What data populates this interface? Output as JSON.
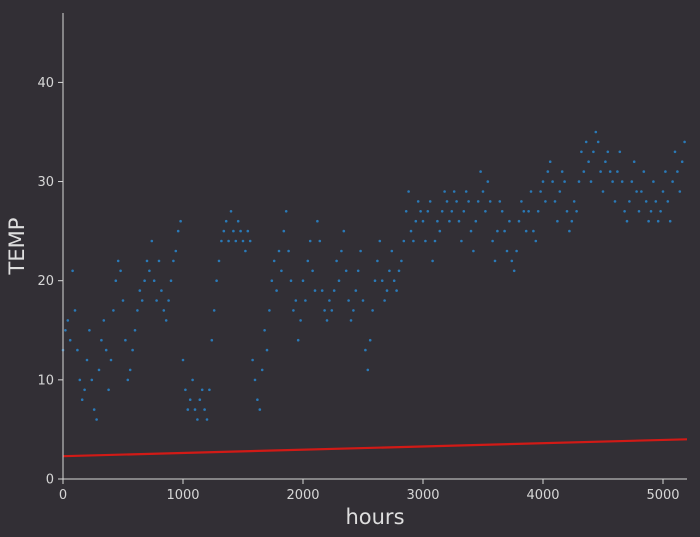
{
  "chart_data": {
    "type": "scatter",
    "xlabel": "hours",
    "ylabel": "TEMP",
    "xlim": [
      0,
      5200
    ],
    "ylim": [
      0,
      47
    ],
    "xticks": [
      "0",
      "1000",
      "2000",
      "3000",
      "4000",
      "5000"
    ],
    "yticks": [
      "0",
      "10",
      "20",
      "30",
      "40"
    ],
    "grid": false,
    "series": [
      {
        "kind": "scatter",
        "color": "#2a7ab8",
        "points": [
          [
            0,
            13
          ],
          [
            20,
            15
          ],
          [
            40,
            16
          ],
          [
            60,
            14
          ],
          [
            80,
            21
          ],
          [
            100,
            17
          ],
          [
            120,
            13
          ],
          [
            140,
            10
          ],
          [
            160,
            8
          ],
          [
            180,
            9
          ],
          [
            200,
            12
          ],
          [
            220,
            15
          ],
          [
            240,
            10
          ],
          [
            260,
            7
          ],
          [
            280,
            6
          ],
          [
            300,
            11
          ],
          [
            320,
            14
          ],
          [
            340,
            16
          ],
          [
            360,
            13
          ],
          [
            380,
            9
          ],
          [
            400,
            12
          ],
          [
            420,
            17
          ],
          [
            440,
            20
          ],
          [
            460,
            22
          ],
          [
            480,
            21
          ],
          [
            500,
            18
          ],
          [
            520,
            14
          ],
          [
            540,
            10
          ],
          [
            560,
            11
          ],
          [
            580,
            13
          ],
          [
            600,
            15
          ],
          [
            620,
            17
          ],
          [
            640,
            19
          ],
          [
            660,
            18
          ],
          [
            680,
            20
          ],
          [
            700,
            22
          ],
          [
            720,
            21
          ],
          [
            740,
            24
          ],
          [
            760,
            20
          ],
          [
            780,
            18
          ],
          [
            800,
            22
          ],
          [
            820,
            19
          ],
          [
            840,
            17
          ],
          [
            860,
            16
          ],
          [
            880,
            18
          ],
          [
            900,
            20
          ],
          [
            920,
            22
          ],
          [
            940,
            23
          ],
          [
            960,
            25
          ],
          [
            980,
            26
          ],
          [
            1000,
            12
          ],
          [
            1020,
            9
          ],
          [
            1040,
            7
          ],
          [
            1060,
            8
          ],
          [
            1080,
            10
          ],
          [
            1100,
            7
          ],
          [
            1120,
            6
          ],
          [
            1140,
            8
          ],
          [
            1160,
            9
          ],
          [
            1180,
            7
          ],
          [
            1200,
            6
          ],
          [
            1220,
            9
          ],
          [
            1240,
            14
          ],
          [
            1260,
            17
          ],
          [
            1280,
            20
          ],
          [
            1300,
            22
          ],
          [
            1320,
            24
          ],
          [
            1340,
            25
          ],
          [
            1360,
            26
          ],
          [
            1380,
            24
          ],
          [
            1400,
            27
          ],
          [
            1420,
            25
          ],
          [
            1440,
            24
          ],
          [
            1460,
            26
          ],
          [
            1480,
            25
          ],
          [
            1500,
            24
          ],
          [
            1520,
            23
          ],
          [
            1540,
            25
          ],
          [
            1560,
            24
          ],
          [
            1580,
            12
          ],
          [
            1600,
            10
          ],
          [
            1620,
            8
          ],
          [
            1640,
            7
          ],
          [
            1660,
            11
          ],
          [
            1680,
            15
          ],
          [
            1700,
            13
          ],
          [
            1720,
            17
          ],
          [
            1740,
            20
          ],
          [
            1760,
            22
          ],
          [
            1780,
            19
          ],
          [
            1800,
            23
          ],
          [
            1820,
            21
          ],
          [
            1840,
            25
          ],
          [
            1860,
            27
          ],
          [
            1880,
            23
          ],
          [
            1900,
            20
          ],
          [
            1920,
            17
          ],
          [
            1940,
            18
          ],
          [
            1960,
            14
          ],
          [
            1980,
            16
          ],
          [
            2000,
            20
          ],
          [
            2020,
            18
          ],
          [
            2040,
            22
          ],
          [
            2060,
            24
          ],
          [
            2080,
            21
          ],
          [
            2100,
            19
          ],
          [
            2120,
            26
          ],
          [
            2140,
            24
          ],
          [
            2160,
            19
          ],
          [
            2180,
            17
          ],
          [
            2200,
            16
          ],
          [
            2220,
            18
          ],
          [
            2240,
            17
          ],
          [
            2260,
            19
          ],
          [
            2280,
            22
          ],
          [
            2300,
            20
          ],
          [
            2320,
            23
          ],
          [
            2340,
            25
          ],
          [
            2360,
            21
          ],
          [
            2380,
            18
          ],
          [
            2400,
            16
          ],
          [
            2420,
            17
          ],
          [
            2440,
            19
          ],
          [
            2460,
            21
          ],
          [
            2480,
            23
          ],
          [
            2500,
            18
          ],
          [
            2520,
            13
          ],
          [
            2540,
            11
          ],
          [
            2560,
            14
          ],
          [
            2580,
            17
          ],
          [
            2600,
            20
          ],
          [
            2620,
            22
          ],
          [
            2640,
            24
          ],
          [
            2660,
            20
          ],
          [
            2680,
            18
          ],
          [
            2700,
            19
          ],
          [
            2720,
            21
          ],
          [
            2740,
            23
          ],
          [
            2760,
            20
          ],
          [
            2780,
            19
          ],
          [
            2800,
            21
          ],
          [
            2820,
            22
          ],
          [
            2840,
            24
          ],
          [
            2860,
            27
          ],
          [
            2880,
            29
          ],
          [
            2900,
            25
          ],
          [
            2920,
            24
          ],
          [
            2940,
            26
          ],
          [
            2960,
            28
          ],
          [
            2980,
            27
          ],
          [
            3000,
            26
          ],
          [
            3020,
            24
          ],
          [
            3040,
            27
          ],
          [
            3060,
            28
          ],
          [
            3080,
            22
          ],
          [
            3100,
            24
          ],
          [
            3120,
            26
          ],
          [
            3140,
            25
          ],
          [
            3160,
            27
          ],
          [
            3180,
            29
          ],
          [
            3200,
            28
          ],
          [
            3220,
            26
          ],
          [
            3240,
            27
          ],
          [
            3260,
            29
          ],
          [
            3280,
            28
          ],
          [
            3300,
            26
          ],
          [
            3320,
            24
          ],
          [
            3340,
            27
          ],
          [
            3360,
            29
          ],
          [
            3380,
            28
          ],
          [
            3400,
            25
          ],
          [
            3420,
            23
          ],
          [
            3440,
            26
          ],
          [
            3460,
            28
          ],
          [
            3480,
            31
          ],
          [
            3500,
            29
          ],
          [
            3520,
            27
          ],
          [
            3540,
            30
          ],
          [
            3560,
            28
          ],
          [
            3580,
            24
          ],
          [
            3600,
            22
          ],
          [
            3620,
            25
          ],
          [
            3640,
            28
          ],
          [
            3660,
            27
          ],
          [
            3680,
            25
          ],
          [
            3700,
            23
          ],
          [
            3720,
            26
          ],
          [
            3740,
            22
          ],
          [
            3760,
            21
          ],
          [
            3780,
            23
          ],
          [
            3800,
            26
          ],
          [
            3820,
            28
          ],
          [
            3840,
            27
          ],
          [
            3860,
            25
          ],
          [
            3880,
            27
          ],
          [
            3900,
            29
          ],
          [
            3920,
            25
          ],
          [
            3940,
            24
          ],
          [
            3960,
            27
          ],
          [
            3980,
            29
          ],
          [
            4000,
            30
          ],
          [
            4020,
            28
          ],
          [
            4040,
            31
          ],
          [
            4060,
            32
          ],
          [
            4080,
            30
          ],
          [
            4100,
            28
          ],
          [
            4120,
            26
          ],
          [
            4140,
            29
          ],
          [
            4160,
            31
          ],
          [
            4180,
            30
          ],
          [
            4200,
            27
          ],
          [
            4220,
            25
          ],
          [
            4240,
            26
          ],
          [
            4260,
            28
          ],
          [
            4280,
            27
          ],
          [
            4300,
            30
          ],
          [
            4320,
            33
          ],
          [
            4340,
            31
          ],
          [
            4360,
            34
          ],
          [
            4380,
            32
          ],
          [
            4400,
            30
          ],
          [
            4420,
            33
          ],
          [
            4440,
            35
          ],
          [
            4460,
            34
          ],
          [
            4480,
            31
          ],
          [
            4500,
            29
          ],
          [
            4520,
            32
          ],
          [
            4540,
            33
          ],
          [
            4560,
            31
          ],
          [
            4580,
            30
          ],
          [
            4600,
            28
          ],
          [
            4620,
            31
          ],
          [
            4640,
            33
          ],
          [
            4660,
            30
          ],
          [
            4680,
            27
          ],
          [
            4700,
            26
          ],
          [
            4720,
            28
          ],
          [
            4740,
            30
          ],
          [
            4760,
            32
          ],
          [
            4780,
            29
          ],
          [
            4800,
            27
          ],
          [
            4820,
            29
          ],
          [
            4840,
            31
          ],
          [
            4860,
            28
          ],
          [
            4880,
            26
          ],
          [
            4900,
            27
          ],
          [
            4920,
            30
          ],
          [
            4940,
            28
          ],
          [
            4960,
            26
          ],
          [
            4980,
            27
          ],
          [
            5000,
            29
          ],
          [
            5020,
            31
          ],
          [
            5040,
            28
          ],
          [
            5060,
            26
          ],
          [
            5080,
            30
          ],
          [
            5100,
            33
          ],
          [
            5120,
            31
          ],
          [
            5140,
            29
          ],
          [
            5160,
            32
          ],
          [
            5180,
            34
          ]
        ]
      },
      {
        "kind": "line",
        "color": "#d11a16",
        "points": [
          [
            0,
            2.3
          ],
          [
            5200,
            4.0
          ]
        ]
      }
    ]
  }
}
